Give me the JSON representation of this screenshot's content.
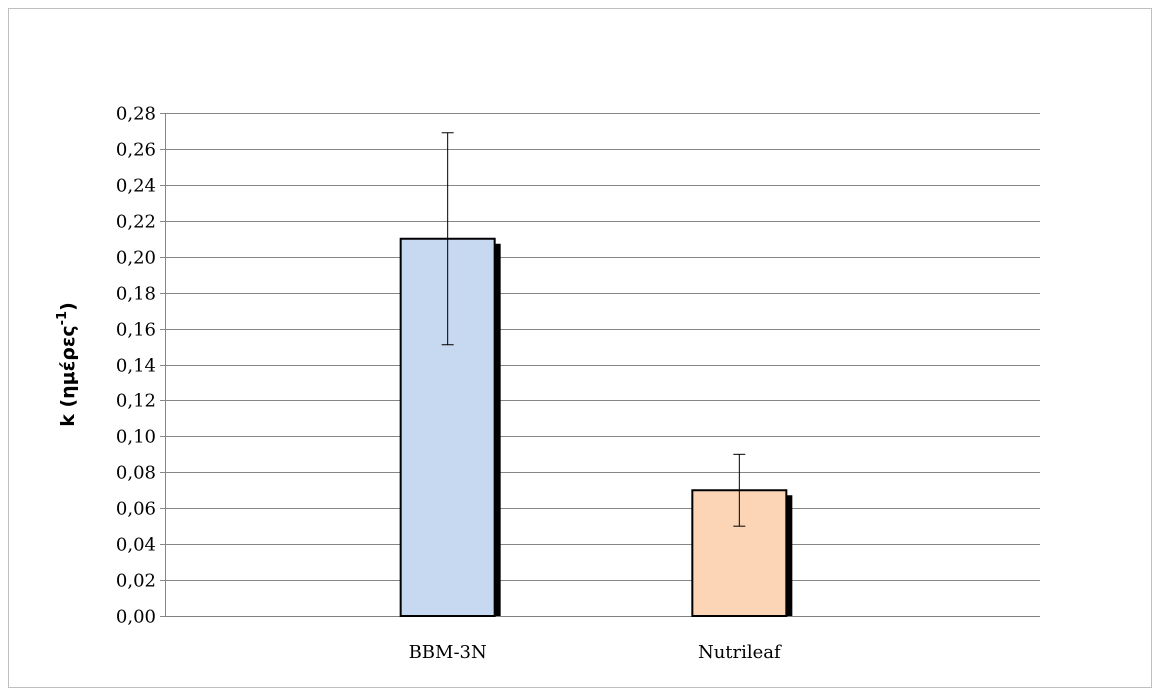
{
  "chart_data": {
    "type": "bar",
    "categories": [
      "BBM-3N",
      "Nutrileaf"
    ],
    "values": [
      0.21,
      0.07
    ],
    "error": [
      0.059,
      0.02
    ],
    "colors": [
      "#c6d9f1",
      "#fbd5b5"
    ],
    "ylim": [
      0,
      0.28
    ],
    "ytick_step": 0.02,
    "yticks": [
      "0,00",
      "0,02",
      "0,04",
      "0,06",
      "0,08",
      "0,10",
      "0,12",
      "0,14",
      "0,16",
      "0,18",
      "0,20",
      "0,22",
      "0,24",
      "0,26",
      "0,28"
    ],
    "ylabel": "k (ημέρες",
    "ylabel_superscript": "-1",
    "ylabel_suffix": ")",
    "xlabel": "",
    "title": "",
    "grid": true,
    "legend": "none"
  }
}
